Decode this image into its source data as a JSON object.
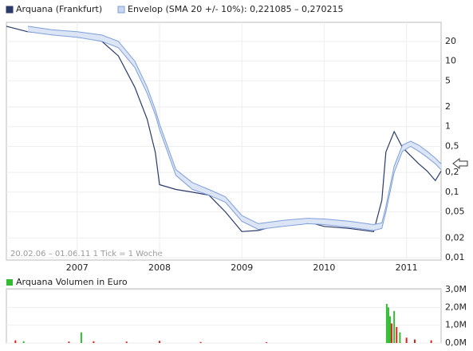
{
  "chart_data": [
    {
      "type": "line",
      "log_y": true,
      "grid": true,
      "note": "20.02.06 – 01.06.11   1 Tick = 1 Woche",
      "x": [
        2006.14,
        2006.4,
        2006.7,
        2007.0,
        2007.3,
        2007.5,
        2007.7,
        2007.85,
        2007.95,
        2008.0,
        2008.2,
        2008.4,
        2008.6,
        2008.8,
        2009.0,
        2009.2,
        2009.5,
        2009.8,
        2010.0,
        2010.3,
        2010.6,
        2010.7,
        2010.75,
        2010.85,
        2010.95,
        2011.05,
        2011.15,
        2011.25,
        2011.35,
        2011.42
      ],
      "xlim": [
        2006.14,
        2011.42
      ],
      "xticks": [
        2007,
        2008,
        2009,
        2010,
        2011
      ],
      "ylim": [
        0.0092,
        39
      ],
      "yticks": [
        {
          "value": 0.01,
          "label": "0,01"
        },
        {
          "value": 0.02,
          "label": "0,02"
        },
        {
          "value": 0.05,
          "label": "0,05"
        },
        {
          "value": 0.1,
          "label": "0,1"
        },
        {
          "value": 0.2,
          "label": "0,2"
        },
        {
          "value": 0.5,
          "label": "0,5"
        },
        1,
        2,
        5,
        10,
        20
      ],
      "series": [
        {
          "name": "Arquana (Frankfurt)",
          "color": "#2b3a67",
          "values": [
            34,
            28,
            26,
            24,
            20,
            12,
            4,
            1.3,
            0.4,
            0.13,
            0.11,
            0.1,
            0.09,
            0.05,
            0.025,
            0.026,
            0.033,
            0.035,
            0.03,
            0.028,
            0.025,
            0.075,
            0.41,
            0.84,
            0.48,
            0.36,
            0.27,
            0.21,
            0.15,
            0.21
          ]
        },
        {
          "name": "Envelop (SMA 20 +/- 10%): 0,221085 – 0,270215",
          "color": "#7f9fd8",
          "lower": [
            null,
            28,
            25,
            23,
            20,
            16,
            8,
            3.2,
            1.5,
            0.9,
            0.18,
            0.11,
            0.09,
            0.07,
            0.036,
            0.027,
            0.03,
            0.033,
            0.032,
            0.029,
            0.026,
            0.028,
            0.05,
            0.2,
            0.42,
            0.5,
            0.42,
            0.34,
            0.27,
            0.22
          ],
          "upper": [
            null,
            34,
            30,
            28,
            25,
            20,
            10,
            4,
            1.8,
            1.1,
            0.22,
            0.14,
            0.11,
            0.085,
            0.044,
            0.033,
            0.037,
            0.04,
            0.039,
            0.036,
            0.032,
            0.034,
            0.06,
            0.25,
            0.52,
            0.6,
            0.52,
            0.42,
            0.33,
            0.27
          ]
        }
      ]
    },
    {
      "type": "bar",
      "legend": "Arquana Volumen in Euro",
      "legend_color": "#33bb33",
      "grid": true,
      "x": [
        2006.25,
        2006.35,
        2006.9,
        2007.05,
        2007.2,
        2007.6,
        2008.0,
        2008.5,
        2009.3,
        2010.76,
        2010.78,
        2010.8,
        2010.82,
        2010.85,
        2010.88,
        2010.92,
        2011.0,
        2011.1,
        2011.3
      ],
      "values": [
        150000,
        100000,
        80000,
        600000,
        100000,
        80000,
        120000,
        60000,
        50000,
        2200000,
        2000000,
        1500000,
        1100000,
        1800000,
        900000,
        600000,
        300000,
        200000,
        150000
      ],
      "colors": [
        "#dd2222",
        "#33bb33",
        "#dd2222",
        "#33bb33",
        "#dd2222",
        "#dd2222",
        "#dd2222",
        "#dd2222",
        "#dd2222",
        "#33bb33",
        "#33bb33",
        "#33bb33",
        "#dd2222",
        "#33bb33",
        "#dd2222",
        "#33bb33",
        "#dd2222",
        "#dd2222",
        "#dd2222"
      ],
      "xlim": [
        2006.14,
        2011.42
      ],
      "ylim": [
        0,
        3000000
      ],
      "yticks": [
        {
          "value": 0,
          "label": "0,0M"
        },
        {
          "value": 1000000,
          "label": "1,0M"
        },
        {
          "value": 2000000,
          "label": "2,0M"
        },
        {
          "value": 3000000,
          "label": "3,0M"
        }
      ]
    }
  ]
}
